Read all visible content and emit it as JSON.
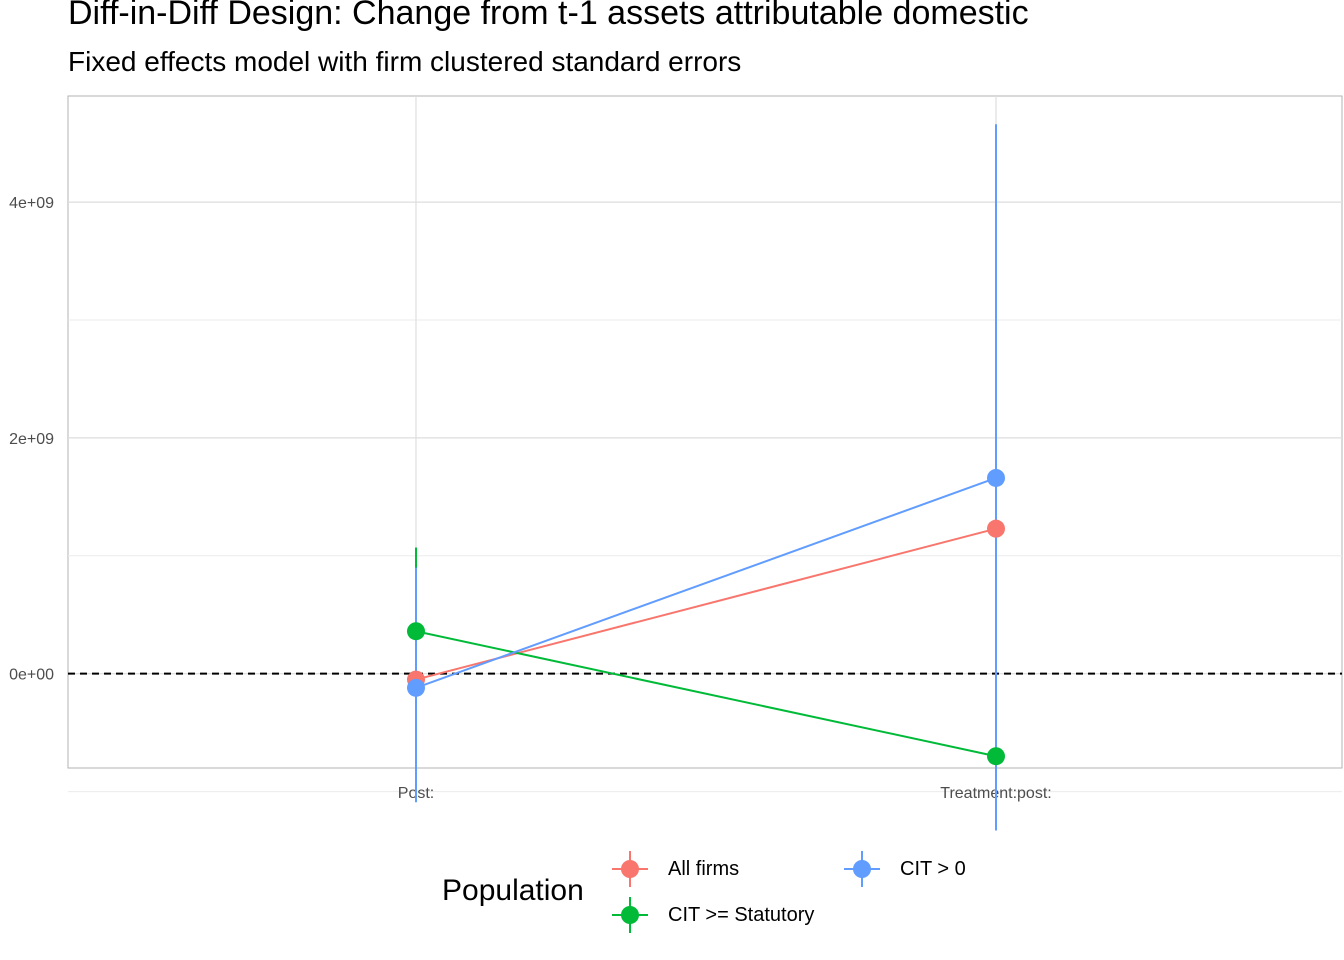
{
  "title": "Diff-in-Diff Design: Change from t-1 assets attributable domestic",
  "subtitle": "Fixed effects model with firm clustered standard errors",
  "legend": {
    "title": "Population",
    "items": [
      {
        "label": "All firms",
        "color": "#F8766D"
      },
      {
        "label": "CIT > 0",
        "color": "#619CFF"
      },
      {
        "label": "CIT >= Statutory",
        "color": "#00BA38"
      }
    ]
  },
  "chart_data": {
    "type": "line",
    "categories": [
      "Post:",
      "Treatment:post:"
    ],
    "ylim": [
      -800000000,
      4900000000
    ],
    "y_ticks": [
      0,
      2000000000,
      4000000000
    ],
    "y_tick_labels": [
      "0e+00",
      "2e+09",
      "4e+09"
    ],
    "reference_line": {
      "y": 0,
      "style": "dashed"
    },
    "grid": true,
    "legend_position": "bottom",
    "series": [
      {
        "name": "All firms",
        "color": "#F8766D",
        "values": [
          -50000000,
          1230000000
        ],
        "lower": [
          -80000000,
          1190000000
        ],
        "upper": [
          -20000000,
          1270000000
        ]
      },
      {
        "name": "CIT >= Statutory",
        "color": "#00BA38",
        "values": [
          360000000,
          -700000000
        ],
        "lower": [
          280000000,
          -760000000
        ],
        "upper": [
          1070000000,
          -640000000
        ]
      },
      {
        "name": "CIT > 0",
        "color": "#619CFF",
        "values": [
          -120000000,
          1660000000
        ],
        "lower": [
          -1090000000,
          -1330000000
        ],
        "upper": [
          900000000,
          4660000000
        ]
      }
    ]
  }
}
